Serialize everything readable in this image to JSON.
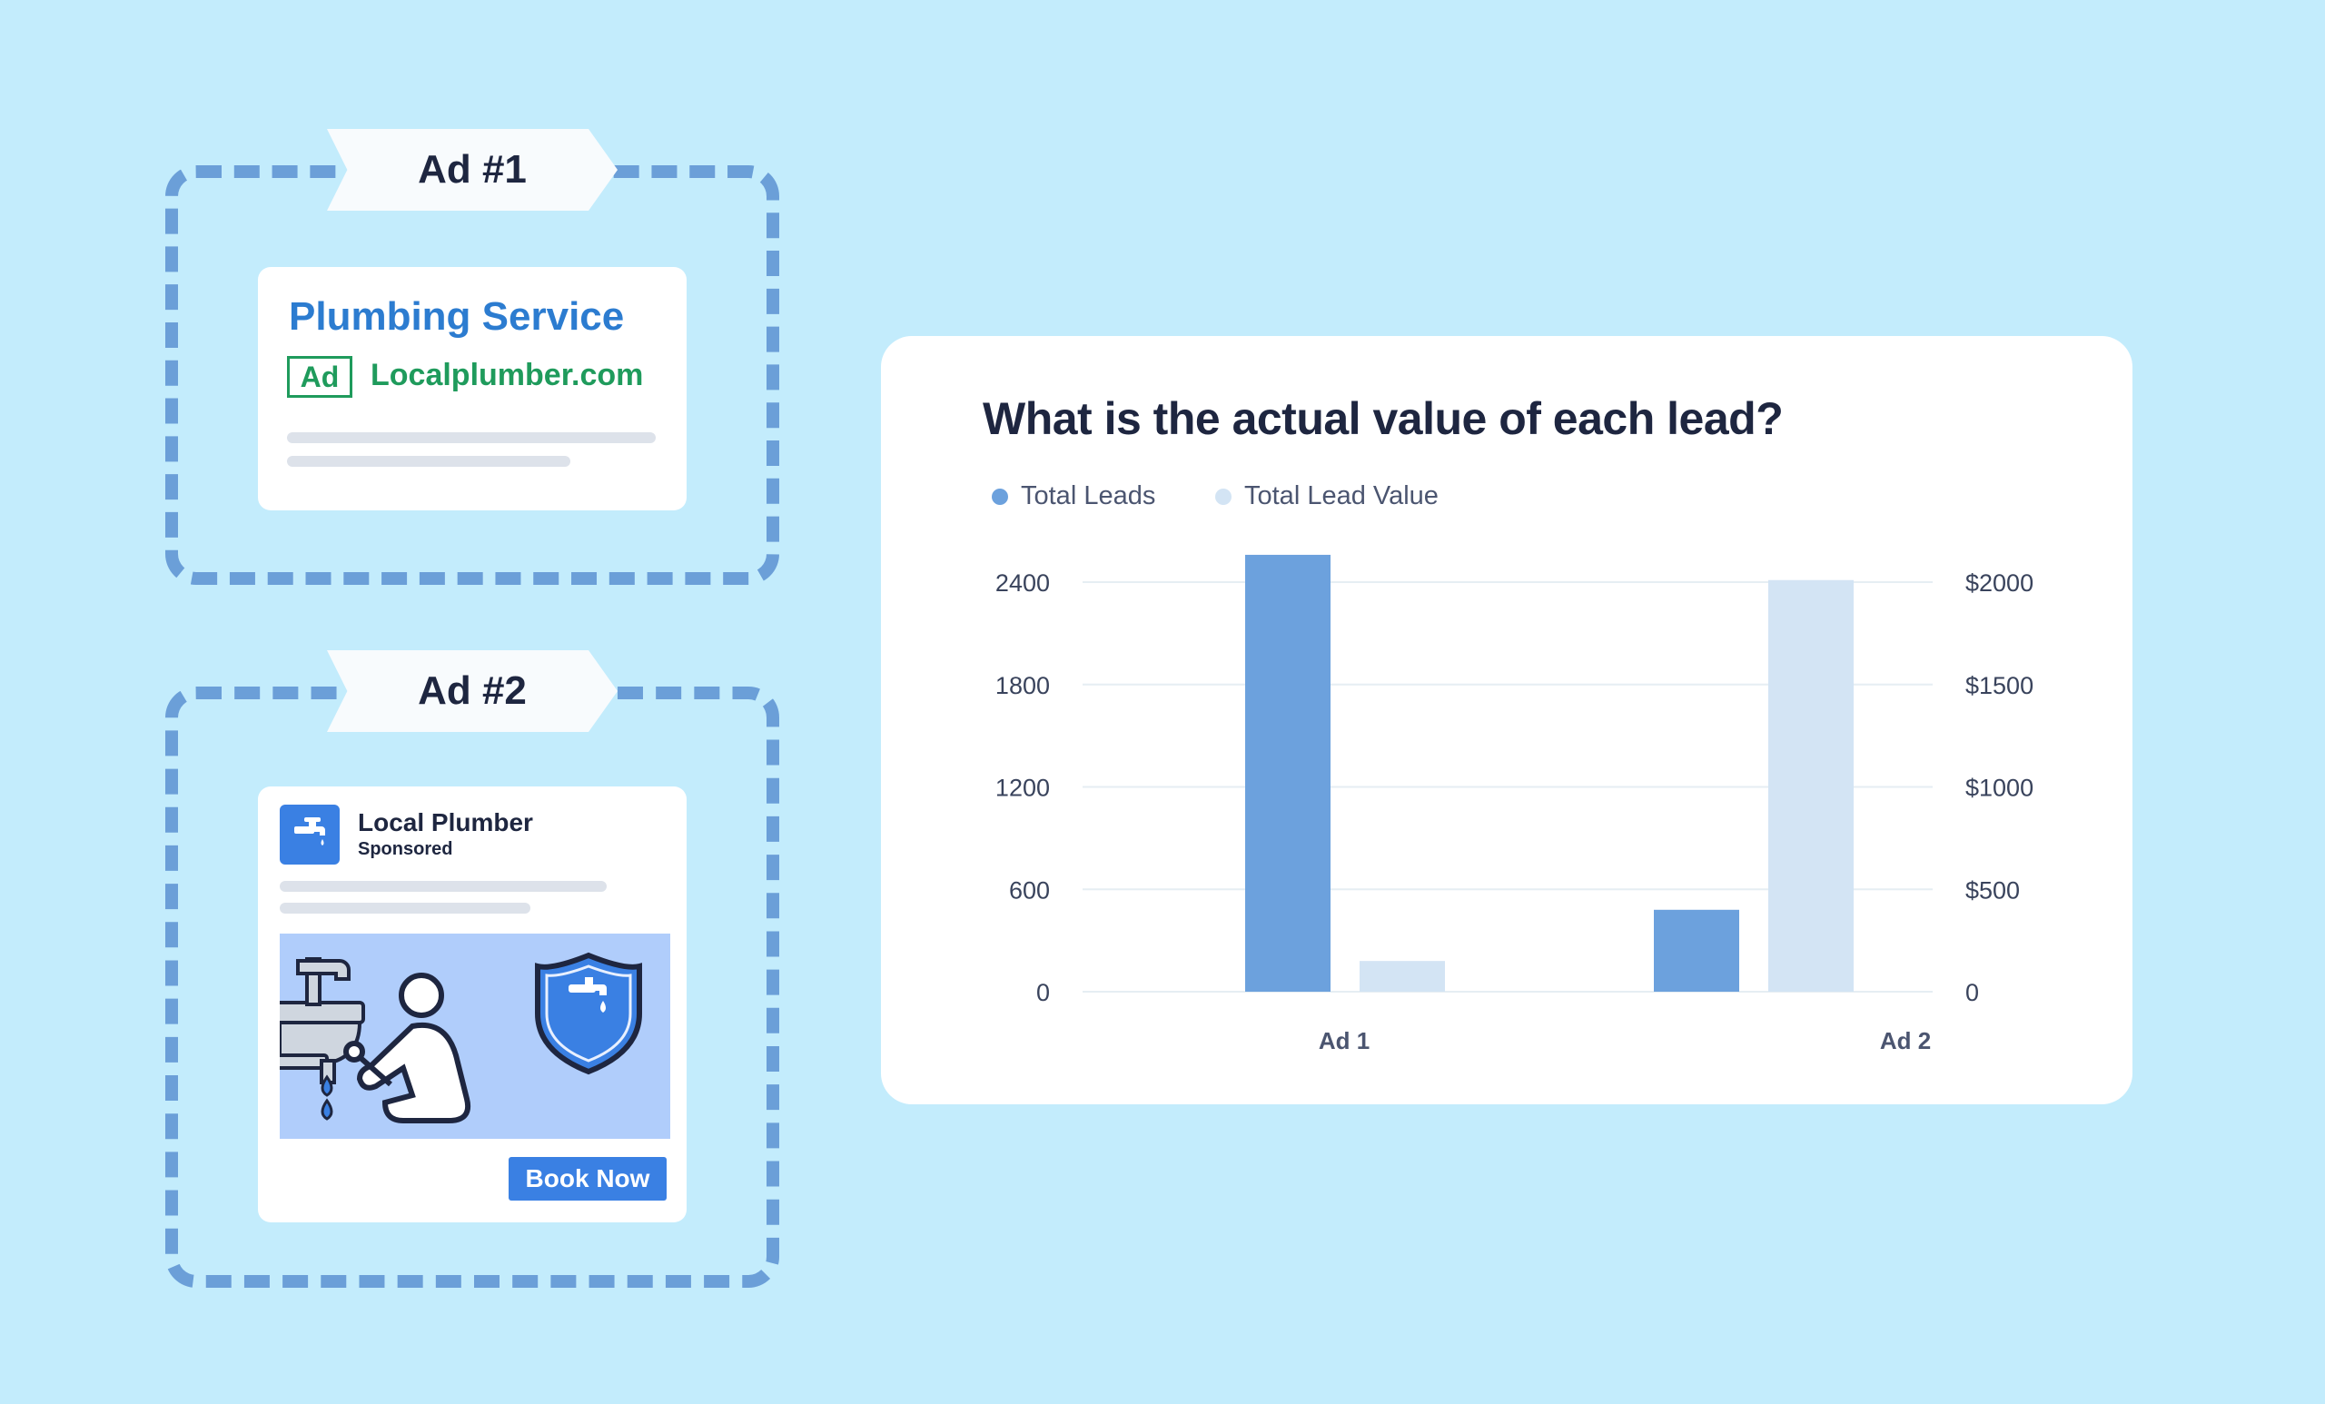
{
  "ad1": {
    "label": "Ad #1",
    "headline": "Plumbing Service",
    "badge": "Ad",
    "domain": "Localplumber.com"
  },
  "ad2": {
    "label": "Ad #2",
    "page_name": "Local Plumber",
    "sponsored": "Sponsored",
    "icon": "faucet-icon",
    "cta": "Book Now"
  },
  "colors": {
    "background": "#c3ecfc",
    "frame": "#6b9fd8",
    "primary_bar": "#6ca1dd",
    "secondary_bar": "#d3e4f4",
    "text_dark": "#1e2640",
    "link_blue": "#2c7cd0",
    "ad_green": "#1f9b5c"
  },
  "chart_data": {
    "type": "bar",
    "title": "What is the actual value of each lead?",
    "categories": [
      "Ad 1",
      "Ad 2"
    ],
    "series": [
      {
        "name": "Total Leads",
        "axis": "left",
        "color": "#6ca1dd",
        "values": [
          2560,
          480
        ]
      },
      {
        "name": "Total Lead Value",
        "axis": "right",
        "color": "#d3e4f4",
        "values": [
          150,
          2010
        ]
      }
    ],
    "left_axis": {
      "ticks": [
        0,
        600,
        1200,
        1800,
        2400
      ],
      "tick_labels": [
        "0",
        "600",
        "1200",
        "1800",
        "2400"
      ],
      "ylim": [
        0,
        2560
      ]
    },
    "right_axis": {
      "ticks": [
        0,
        500,
        1000,
        1500,
        2000
      ],
      "tick_labels": [
        "0",
        "$500",
        "$1000",
        "$1500",
        "$2000"
      ],
      "ylim": [
        0,
        2133
      ]
    },
    "grid": true,
    "legend_position": "top-left"
  }
}
